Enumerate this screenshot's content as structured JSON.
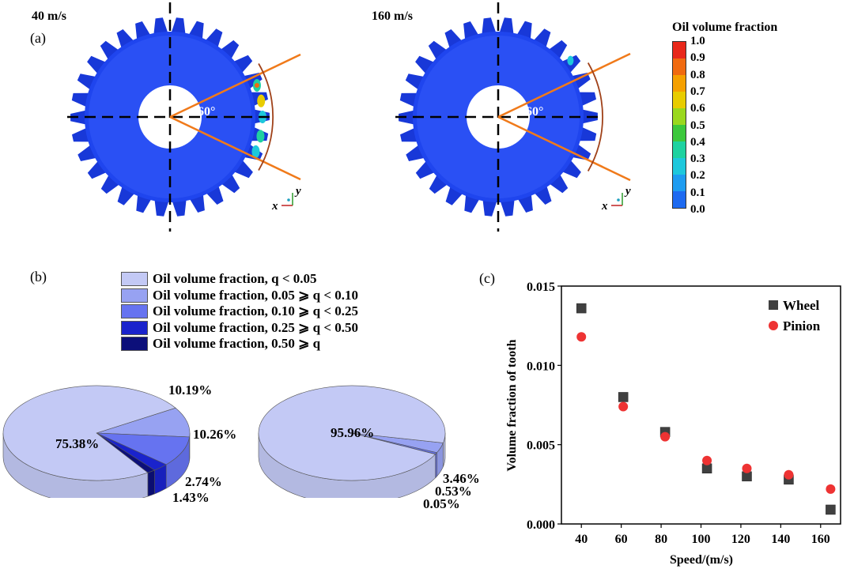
{
  "panel_a": {
    "label": "(a)",
    "left_title": "40 m/s",
    "right_title": "160 m/s",
    "angle_label": "60°",
    "axis_x": "x",
    "axis_y": "y",
    "colorbar": {
      "title": "Oil volume fraction",
      "ticks": [
        "1.0",
        "0.9",
        "0.8",
        "0.7",
        "0.6",
        "0.5",
        "0.4",
        "0.3",
        "0.2",
        "0.1",
        "0.0"
      ],
      "colors": [
        "#e8281a",
        "#f06a10",
        "#f5a000",
        "#e8cc00",
        "#9ad81e",
        "#3cc83c",
        "#1ed2a0",
        "#1ec8dc",
        "#1e9cf0",
        "#1e6af0",
        "#1a3cf0"
      ]
    }
  },
  "panel_b": {
    "label": "(b)",
    "legend": [
      {
        "label": "Oil volume fraction, q < 0.05",
        "color": "#c3c9f5"
      },
      {
        "label": "Oil volume fraction, 0.05 ⩾ q < 0.10",
        "color": "#97a2f2"
      },
      {
        "label": "Oil volume fraction, 0.10 ⩾ q < 0.25",
        "color": "#6673f0"
      },
      {
        "label": "Oil volume fraction, 0.25 ⩾ q < 0.50",
        "color": "#1a23cc"
      },
      {
        "label": "Oil volume fraction, 0.50 ⩾ q",
        "color": "#0c0f7a"
      }
    ],
    "pies": [
      {
        "speed": "40 m/s",
        "values": [
          75.38,
          10.19,
          10.26,
          2.74,
          1.43
        ],
        "labels": [
          "75.38%",
          "10.19%",
          "10.26%",
          "2.74%",
          "1.43%"
        ]
      },
      {
        "speed": "160 m/s",
        "values": [
          95.96,
          3.46,
          0.53,
          0.05
        ],
        "labels": [
          "95.96%",
          "3.46%",
          "0.53%",
          "0.05%"
        ]
      }
    ]
  },
  "chart_data": {
    "type": "scatter",
    "panel_label": "(c)",
    "xlabel": "Speed/(m/s)",
    "ylabel": "Volume fraction of tooth",
    "xlim": [
      30,
      170
    ],
    "ylim": [
      0,
      0.015
    ],
    "xticks": [
      "40",
      "60",
      "80",
      "100",
      "120",
      "140",
      "160"
    ],
    "yticks": [
      "0.000",
      "0.005",
      "0.010",
      "0.015"
    ],
    "legend_position": "top-right",
    "series": [
      {
        "name": "Wheel",
        "marker": "square",
        "color": "#404040",
        "x": [
          40,
          61,
          82,
          103,
          123,
          144,
          165
        ],
        "y": [
          0.0136,
          0.008,
          0.0058,
          0.0035,
          0.003,
          0.0028,
          0.0009
        ]
      },
      {
        "name": "Pinion",
        "marker": "circle",
        "color": "#ee3333",
        "x": [
          40,
          61,
          82,
          103,
          123,
          144,
          165
        ],
        "y": [
          0.0118,
          0.0074,
          0.0055,
          0.004,
          0.0035,
          0.0031,
          0.0022
        ]
      }
    ]
  }
}
